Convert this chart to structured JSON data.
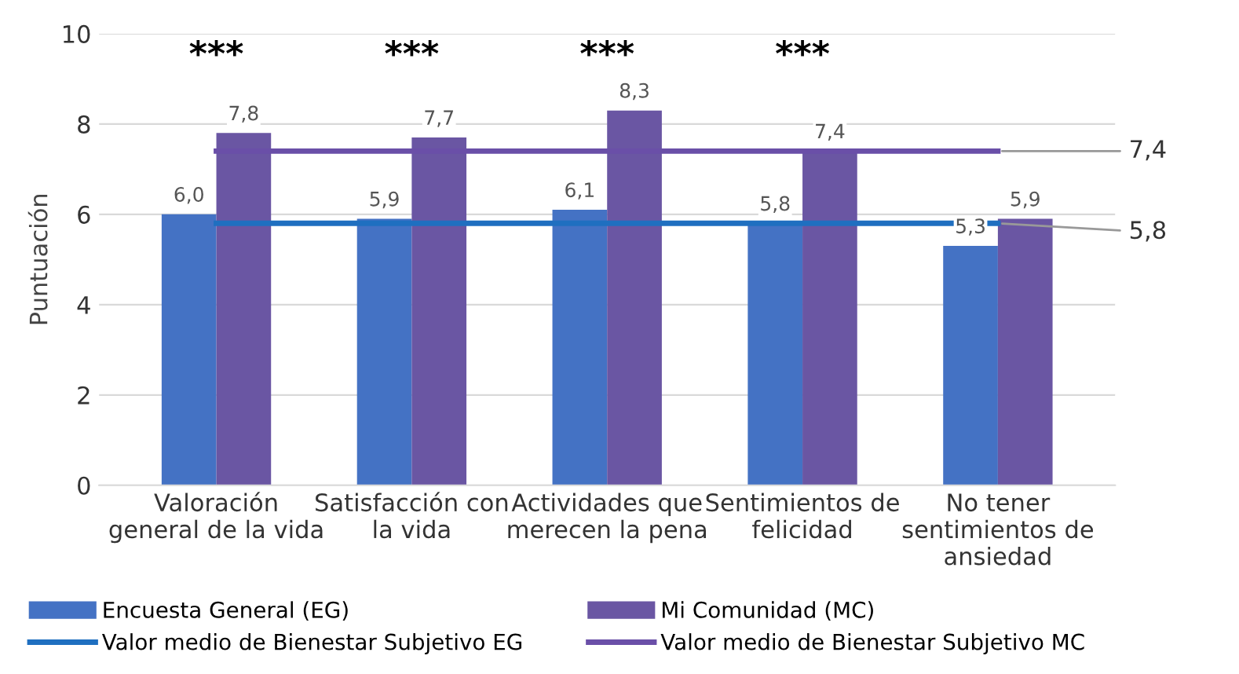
{
  "chart_data": {
    "type": "bar",
    "ylabel": "Puntuación",
    "categories": [
      "Valoración\ngeneral de la vida",
      "Satisfacción con\nla vida",
      "Actividades que\nmerecen la pena",
      "Sentimientos de\nfelicidad",
      "No tener\nsentimientos de\nansiedad"
    ],
    "series": [
      {
        "name": "Encuesta General (EG)",
        "color": "#4472c4",
        "values": [
          6.0,
          5.9,
          6.1,
          5.8,
          5.3
        ],
        "value_labels": [
          "6,0",
          "5,9",
          "6,1",
          "5,8",
          "5,3"
        ]
      },
      {
        "name": "Mi Comunidad (MC)",
        "color": "#6a56a3",
        "values": [
          7.8,
          7.7,
          8.3,
          7.4,
          5.9
        ],
        "value_labels": [
          "7,8",
          "7,7",
          "8,3",
          "7,4",
          "5,9"
        ]
      },
      {
        "name": "Valor medio de Bienestar Subjetivo EG",
        "type": "line",
        "color": "#1f6fc0",
        "values": [
          5.8,
          5.8,
          5.8,
          5.8,
          5.8
        ],
        "value_labels": [
          null,
          null,
          null,
          null,
          "5,8"
        ]
      },
      {
        "name": "Valor medio de Bienestar Subjetivo MC",
        "type": "line",
        "color": "#6a4fa8",
        "values": [
          7.4,
          7.4,
          7.4,
          7.4,
          7.4
        ],
        "value_labels": [
          null,
          null,
          null,
          null,
          "7,4"
        ]
      }
    ],
    "annotations": [
      "***",
      "***",
      "***",
      "***"
    ],
    "ylim": [
      0,
      10
    ],
    "yticks": [
      0,
      2,
      4,
      6,
      8,
      10
    ],
    "grid": "y",
    "legend": "bottom"
  }
}
